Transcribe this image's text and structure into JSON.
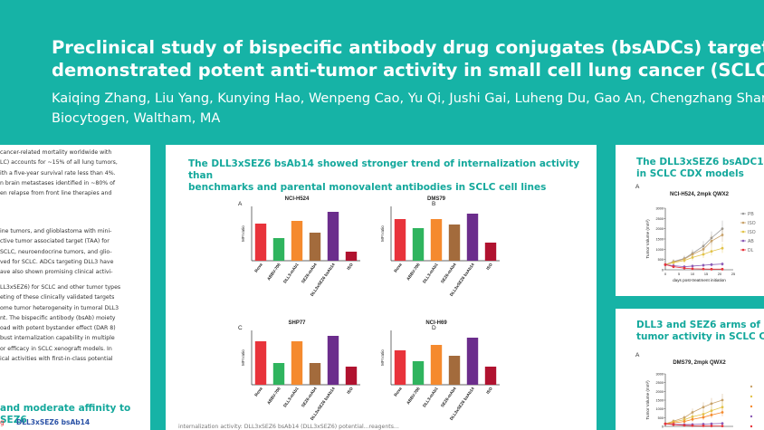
{
  "poster": {
    "title_line1": "Preclinical study of bispecific antibody drug conjugates (bsADCs) targeting",
    "title_line2": "demonstrated potent anti-tumor activity in small cell lung cancer (SCLC) x",
    "authors": "Kaiqing Zhang, Liu Yang, Kunying Hao, Wenpeng Cao, Yu Qi, Jushi Gai, Luheng Du, Gao An, Chengzhang Shang, Y",
    "affiliation": "Biocytogen, Waltham, MA"
  },
  "left_panel": {
    "lines_p1": [
      "cancer-related mortality worldwide with",
      "LC) accounts for ~15% of all lung tumors,",
      "ith a five-year survival rate less than 4%.",
      "n brain metastases identified in ~80% of",
      "en relapse from front line therapies and"
    ],
    "lines_p2": [
      "ine tumors, and glioblastoma with mini-",
      "ctive tumor associated target (TAA) for",
      "SCLC, neuroendocrine tumors, and glio-",
      "ved for SCLC. ADCs targeting DLL3 have",
      "ave also shown promising clinical activi-"
    ],
    "lines_p3": [
      "LL3xSEZ6) for SCLC and other tumor types",
      "eting of these clinically validated targets",
      "ome tumor heterogeneity in tumoral DLL3",
      "nt. The bispecific antibody (bsAb) moiety",
      "oad with potent bystander effect (DAR 8)",
      "bust internalization capability in multiple",
      "or efficacy in SCLC xenograft models. In",
      "ical activities with first-in-class potential"
    ],
    "heading_bottom": "and moderate affinity to SEZ6",
    "legend_frag1": "g",
    "legend_frag2": "DLL3xSEZ6 bsAb14"
  },
  "mid_panel": {
    "title_line1": "The DLL3xSEZ6 bsAb14 showed stronger trend of internalization activity than",
    "title_line2": "benchmarks and parental monovalent antibodies in SCLC cell lines",
    "bottom_text": "internalization activity: DLL3xSEZ6 bsAb14 (DLL3xSEZ6) potential...reagents..."
  },
  "chart_data": [
    {
      "type": "bar",
      "panel_letter": "A",
      "title": "NCI-H524",
      "ylabel": "MFI ratio",
      "categories": [
        "Rova",
        "ABBV-706",
        "DLL3-mAb1",
        "SEZ6-mAb4",
        "DLL3xSEZ6 bsAb14",
        "ISO"
      ],
      "values": [
        4.1,
        2.5,
        4.4,
        3.1,
        5.4,
        1.0
      ],
      "colors": [
        "#e8333b",
        "#2fb45e",
        "#f58a2e",
        "#a36b3c",
        "#6b2d8c",
        "#b0122f"
      ],
      "ylim": [
        0,
        6
      ]
    },
    {
      "type": "bar",
      "panel_letter": "B",
      "title": "DMS79",
      "ylabel": "MFI ratio",
      "categories": [
        "Rova",
        "ABBV-706",
        "DLL3-mAb1",
        "SEZ6-mAb4",
        "DLL3xSEZ6 bsAb14",
        "ISO"
      ],
      "values": [
        2.3,
        1.8,
        2.3,
        2.0,
        2.6,
        1.0
      ],
      "colors": [
        "#e8333b",
        "#2fb45e",
        "#f58a2e",
        "#a36b3c",
        "#6b2d8c",
        "#b0122f"
      ],
      "ylim": [
        0,
        3
      ]
    },
    {
      "type": "bar",
      "panel_letter": "C",
      "title": "SHP77",
      "ylabel": "MFI ratio",
      "categories": [
        "Rova",
        "ABBV-706",
        "DLL3-mAb1",
        "SEZ6-mAb4",
        "DLL3xSEZ6 bsAb14",
        "ISO"
      ],
      "values": [
        2.4,
        1.2,
        2.4,
        1.2,
        2.7,
        1.0
      ],
      "colors": [
        "#e8333b",
        "#2fb45e",
        "#f58a2e",
        "#a36b3c",
        "#6b2d8c",
        "#b0122f"
      ],
      "ylim": [
        0,
        3
      ]
    },
    {
      "type": "bar",
      "panel_letter": "D",
      "title": "NCI-H69",
      "ylabel": "MFI ratio",
      "categories": [
        "Rova",
        "ABBV-706",
        "DLL3-mAb1",
        "SEZ6-mAb4",
        "DLL3xSEZ6 bsAb14",
        "ISO"
      ],
      "values": [
        1.9,
        1.3,
        2.2,
        1.6,
        2.6,
        1.0
      ],
      "colors": [
        "#e8333b",
        "#2fb45e",
        "#f58a2e",
        "#a36b3c",
        "#6b2d8c",
        "#b0122f"
      ],
      "ylim": [
        0,
        3
      ]
    },
    {
      "type": "line",
      "panel_letter": "A",
      "title": "NCI-H524, 2mpk QWX2",
      "ylabel": "Tumor Volume (mm³)",
      "xlabel": "days post-treatment initiation",
      "x": [
        0,
        3,
        7,
        10,
        14,
        17,
        21
      ],
      "xticks": [
        0,
        5,
        10,
        15,
        20,
        25
      ],
      "yticks": [
        0,
        500,
        1000,
        1500,
        2000,
        2500,
        3000
      ],
      "ylim": [
        0,
        3000
      ],
      "xlim": [
        0,
        25
      ],
      "series": [
        {
          "name": "PBS",
          "color": "#9a9a9a",
          "values": [
            250,
            400,
            550,
            800,
            1150,
            1550,
            2000
          ]
        },
        {
          "name": "ISO",
          "color": "#c8a26a",
          "values": [
            250,
            380,
            520,
            750,
            1000,
            1400,
            1700
          ]
        },
        {
          "name": "ISO",
          "color": "#e2c34a",
          "values": [
            250,
            350,
            450,
            600,
            750,
            900,
            1050
          ]
        },
        {
          "name": "AB",
          "color": "#8a5bb5",
          "values": [
            250,
            200,
            150,
            180,
            220,
            250,
            280
          ]
        },
        {
          "name": "DL",
          "color": "#e8333b",
          "values": [
            250,
            150,
            80,
            50,
            40,
            30,
            30
          ]
        }
      ]
    },
    {
      "type": "line",
      "panel_letter": "A",
      "title": "DMS79, 2mpk QWX2",
      "ylabel": "Tumor Volume (mm³)",
      "x": [
        0,
        3,
        7,
        10,
        14,
        17,
        21
      ],
      "yticks": [
        0,
        500,
        1000,
        1500,
        2000,
        2500,
        3000
      ],
      "ylim": [
        0,
        3000
      ],
      "series": [
        {
          "name": "",
          "color": "#c8a26a",
          "values": [
            150,
            300,
            500,
            800,
            1100,
            1300,
            1500
          ]
        },
        {
          "name": "",
          "color": "#e2c34a",
          "values": [
            150,
            250,
            380,
            550,
            700,
            900,
            1100
          ]
        },
        {
          "name": "",
          "color": "#f58a2e",
          "values": [
            150,
            200,
            280,
            400,
            520,
            650,
            800
          ]
        },
        {
          "name": "",
          "color": "#8a5bb5",
          "values": [
            150,
            120,
            100,
            110,
            130,
            150,
            170
          ]
        },
        {
          "name": "",
          "color": "#e8333b",
          "values": [
            150,
            100,
            60,
            40,
            30,
            25,
            20
          ]
        }
      ]
    }
  ],
  "right_panel": {
    "title1_line1": "The DLL3xSEZ6 bsADC14 exh",
    "title1_line2": "in SCLC CDX models",
    "title2_line1": "DLL3 and SEZ6 arms of DLL3",
    "title2_line2": "tumor activity in SCLC CDX",
    "legend_pbs": "PB",
    "legend_iso1": "ISO",
    "legend_iso2": "ISO",
    "legend_ab": "AB",
    "legend_dl": "DL"
  }
}
